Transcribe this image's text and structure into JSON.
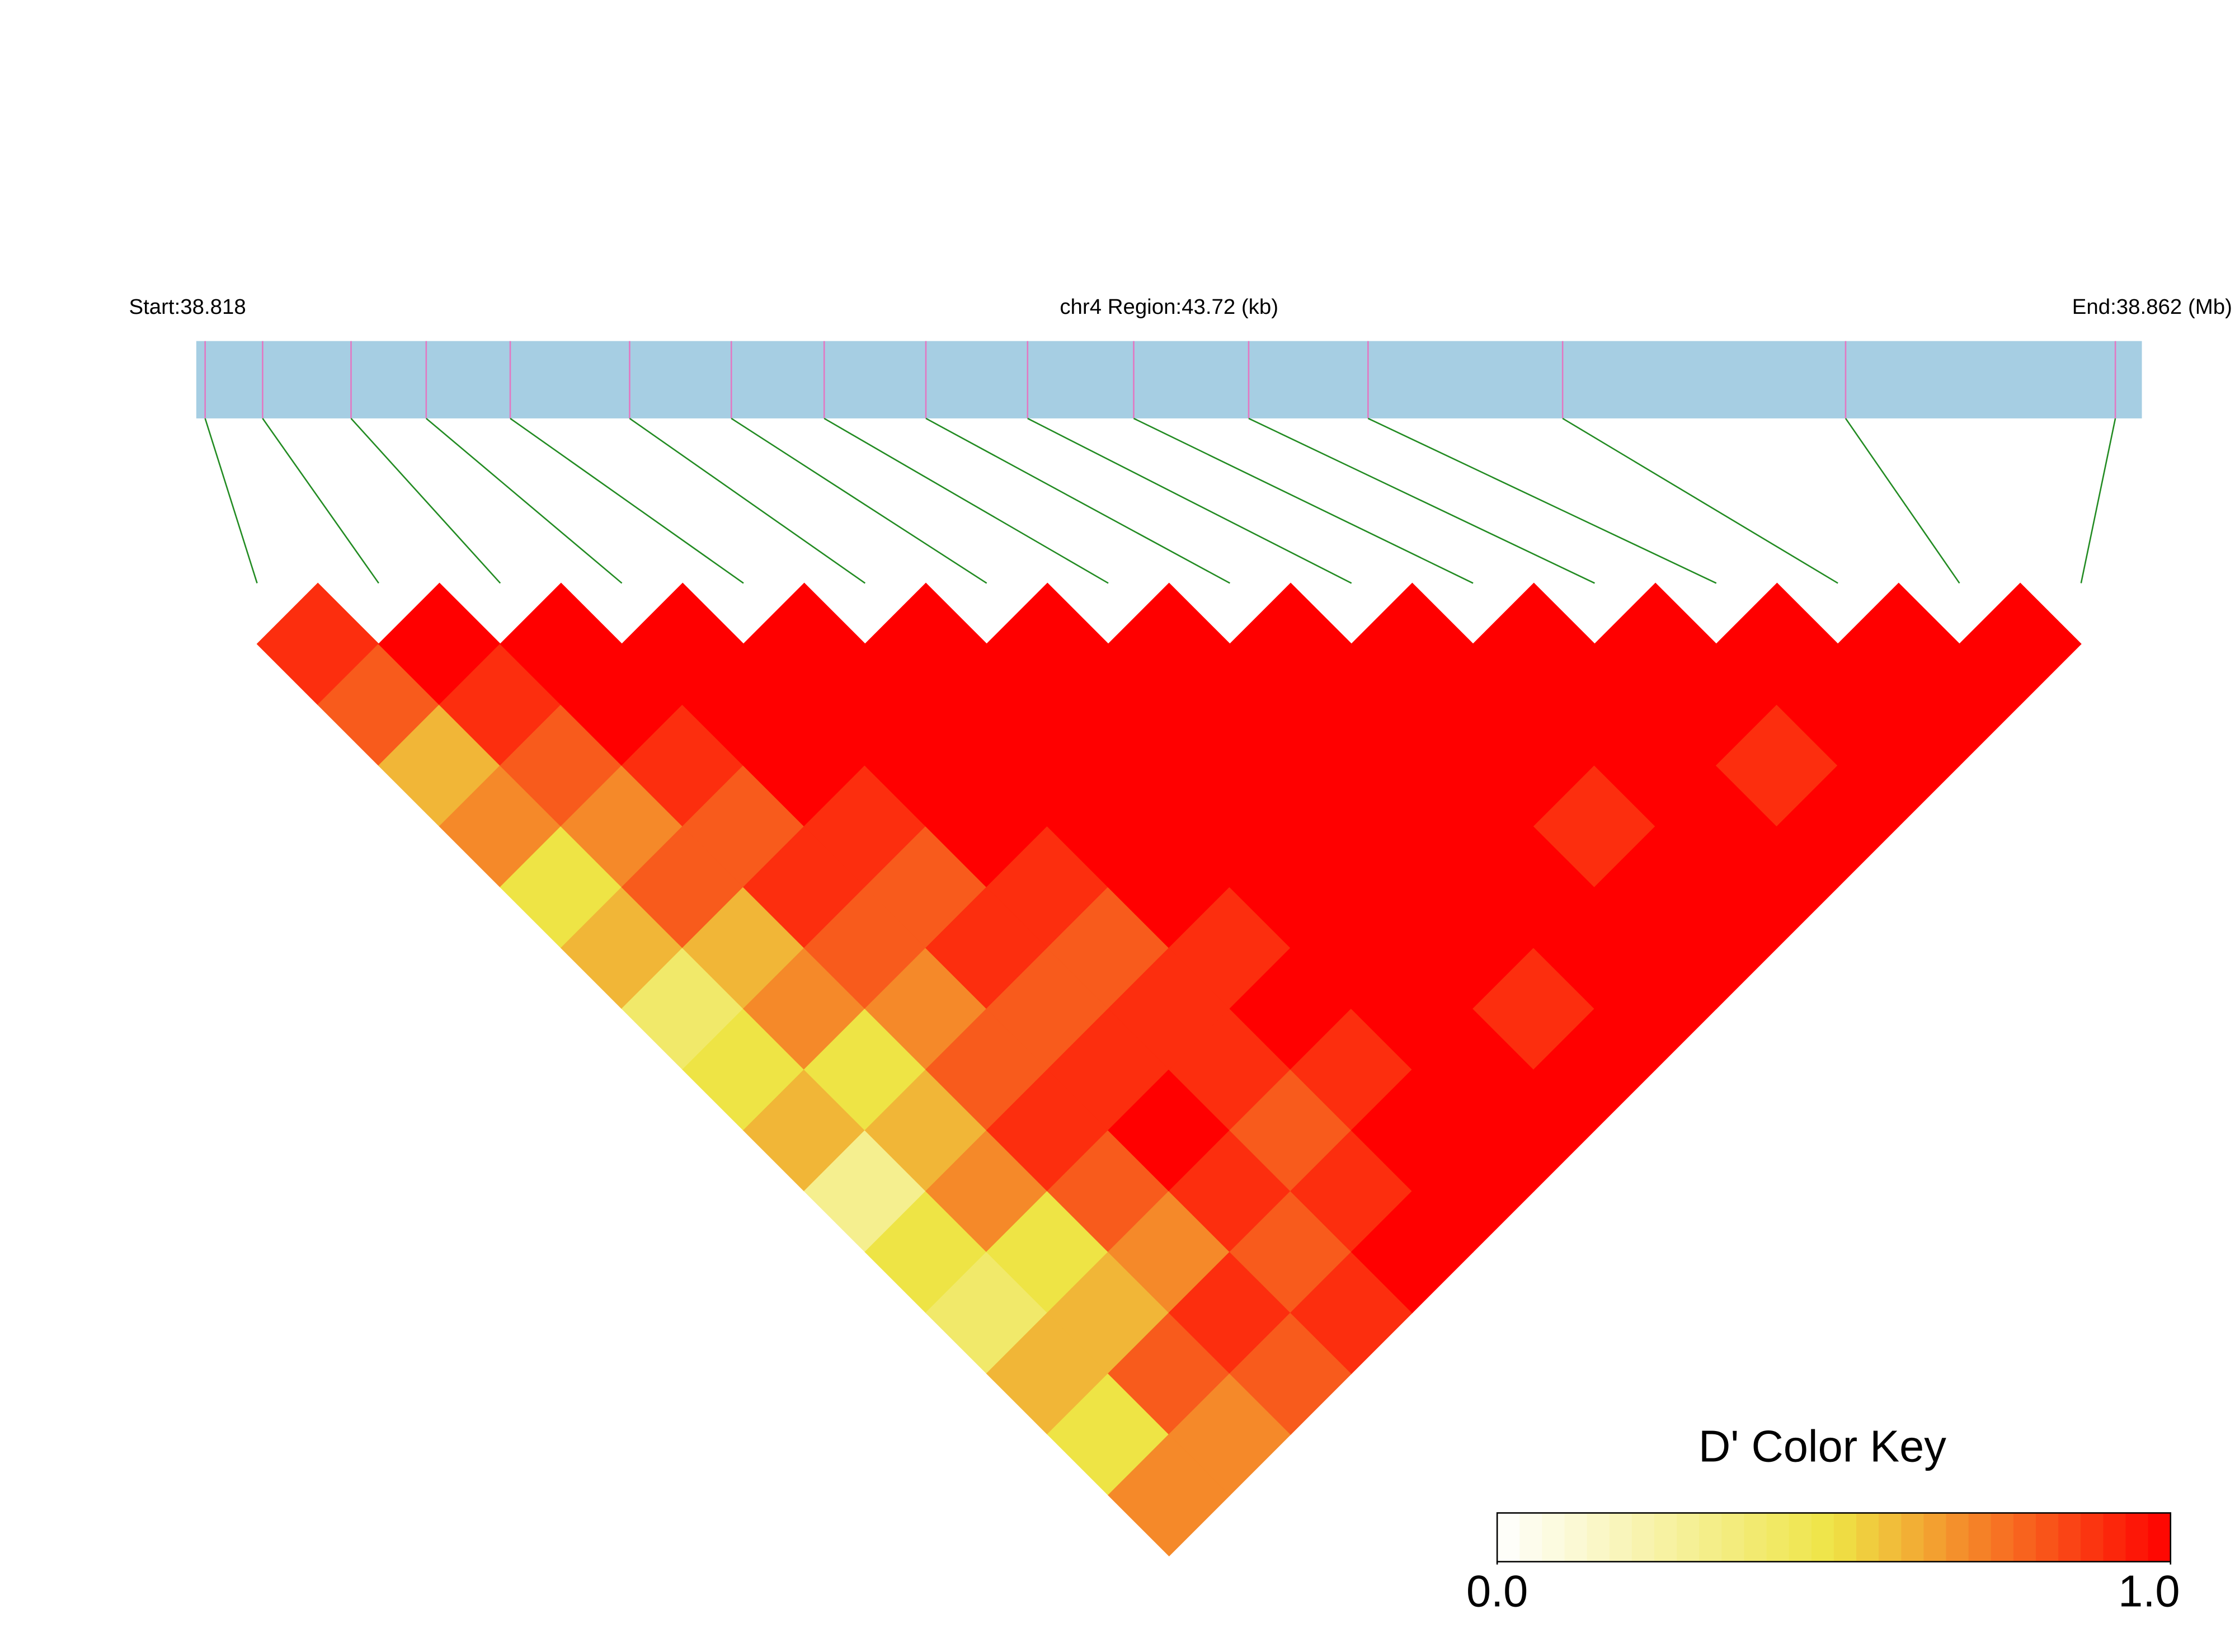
{
  "chart_data": {
    "type": "ld_heatmap",
    "title": "chr4 Region:43.72 (kb)",
    "start_label": "Start:38.818",
    "end_label": "End:38.862 (Mb)",
    "xlim": [
      38.818,
      38.862
    ],
    "x": [
      38.8182,
      38.8195,
      38.8215,
      38.8232,
      38.8251,
      38.8278,
      38.8301,
      38.8322,
      38.8345,
      38.8368,
      38.8392,
      38.8418,
      38.8445,
      38.8489,
      38.8553,
      38.8614
    ],
    "track_color": "#a6cee3",
    "marker_color": "#e377c2",
    "connector_color": "#228b22",
    "dprime": [
      [
        0.9,
        0.8,
        0.6,
        0.7,
        0.5,
        0.6,
        0.4,
        0.5,
        0.6,
        0.3,
        0.5,
        0.4,
        0.6,
        0.5,
        0.7
      ],
      [
        1,
        0.9,
        0.8,
        0.7,
        0.8,
        0.6,
        0.7,
        0.5,
        0.6,
        0.7,
        0.5,
        0.6,
        0.8,
        0.7
      ],
      [
        1,
        1,
        0.9,
        0.8,
        0.9,
        0.8,
        0.7,
        0.8,
        0.9,
        0.8,
        0.7,
        0.9,
        0.8
      ],
      [
        1,
        1,
        1,
        0.9,
        0.8,
        0.9,
        0.8,
        0.9,
        1,
        0.9,
        0.8,
        0.9
      ],
      [
        1,
        1,
        1,
        1,
        0.9,
        0.8,
        0.9,
        0.9,
        0.8,
        0.9,
        1
      ],
      [
        1,
        1,
        1,
        1,
        1,
        0.9,
        1,
        0.9,
        1,
        1
      ],
      [
        1,
        1,
        1,
        1,
        1,
        1,
        1,
        1,
        1
      ],
      [
        1,
        1,
        1,
        1,
        1,
        1,
        0.9,
        1
      ],
      [
        1,
        1,
        1,
        1,
        1,
        1,
        1
      ],
      [
        1,
        1,
        1,
        0.9,
        1,
        1
      ],
      [
        1,
        1,
        1,
        1,
        1
      ],
      [
        1,
        1,
        0.9,
        1
      ],
      [
        1,
        1,
        1
      ],
      [
        1,
        1
      ],
      [
        1
      ]
    ],
    "colorbar": {
      "title": "D' Color Key",
      "lim": [
        0,
        1
      ],
      "ticks": [
        {
          "value": 0,
          "label": "0.0"
        },
        {
          "value": 1,
          "label": "1.0"
        }
      ],
      "colors": [
        "#ffffff",
        "#eee445",
        "#ff0000"
      ]
    }
  }
}
